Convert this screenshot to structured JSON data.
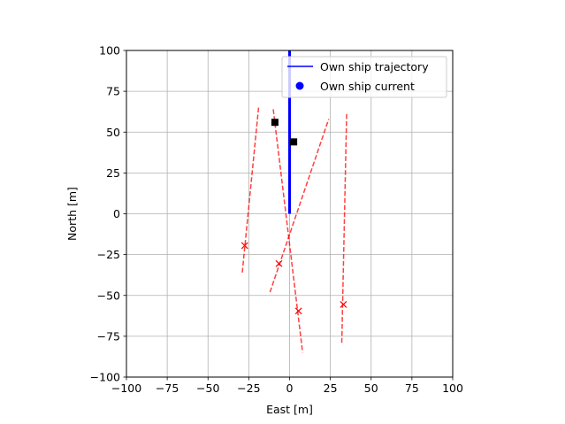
{
  "chart_data": {
    "type": "scatter",
    "xlabel": "East [m]",
    "ylabel": "North [m]",
    "xlim": [
      -100,
      100
    ],
    "ylim": [
      -100,
      100
    ],
    "xticks": [
      -100,
      -75,
      -50,
      -25,
      0,
      25,
      50,
      75,
      100
    ],
    "yticks": [
      -100,
      -75,
      -50,
      -25,
      0,
      25,
      50,
      75,
      100
    ],
    "xtick_labels": [
      "−100",
      "−75",
      "−50",
      "−25",
      "0",
      "25",
      "50",
      "75",
      "100"
    ],
    "ytick_labels": [
      "−100",
      "−75",
      "−50",
      "−25",
      "0",
      "25",
      "50",
      "75",
      "100"
    ],
    "grid": true,
    "legend_position": "top-right",
    "legend": [
      {
        "label": "Own ship trajectory",
        "marker": "line",
        "color": "#0000ff"
      },
      {
        "label": "Own ship current",
        "marker": "circle",
        "color": "#0000ff"
      }
    ],
    "own_ship_trajectory": {
      "color": "#0000ff",
      "points": [
        [
          0,
          0
        ],
        [
          0,
          100
        ]
      ]
    },
    "targets": {
      "color": "#ff0000",
      "positions": [
        [
          -27.5,
          -19.5
        ],
        [
          -6.5,
          -30.5
        ],
        [
          5.5,
          -59.5
        ],
        [
          33,
          -55.5
        ]
      ],
      "predicted_tracks": [
        [
          [
            -29,
            -36
          ],
          [
            -19,
            65
          ]
        ],
        [
          [
            -12,
            -48
          ],
          [
            24,
            58
          ]
        ],
        [
          [
            -10,
            64
          ],
          [
            8,
            -85
          ]
        ],
        [
          [
            32,
            -79
          ],
          [
            35,
            62
          ]
        ]
      ]
    },
    "static_obstacles": {
      "color": "#000000",
      "points": [
        [
          -9,
          56
        ],
        [
          2.5,
          44
        ]
      ]
    }
  }
}
